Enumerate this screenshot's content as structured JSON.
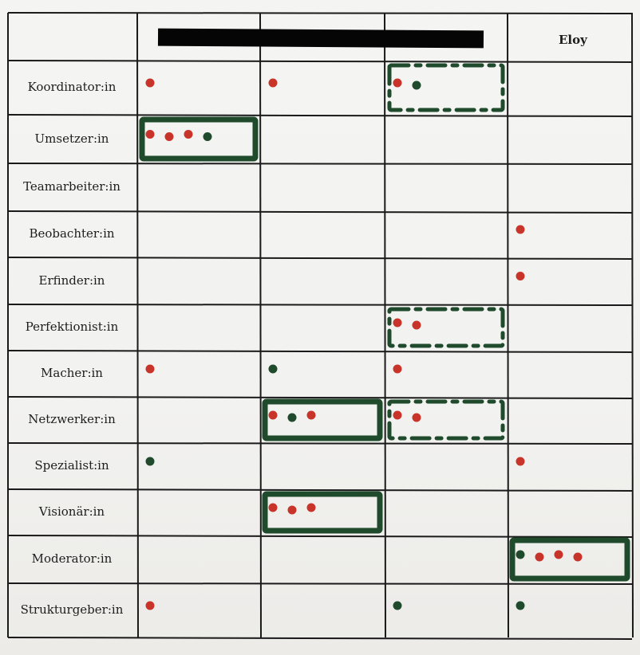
{
  "header": {
    "column_names": [
      "",
      "",
      "Eloy"
    ]
  },
  "rows": [
    {
      "label": "Koordinator:in"
    },
    {
      "label": "Umsetzer:in"
    },
    {
      "label": "Teamarbeiter:in"
    },
    {
      "label": "Beobachter:in"
    },
    {
      "label": "Erfinder:in"
    },
    {
      "label": "Perfektionist:in"
    },
    {
      "label": "Macher:in"
    },
    {
      "label": "Netzwerker:in"
    },
    {
      "label": "Spezialist:in"
    },
    {
      "label": "Visionär:in"
    },
    {
      "label": "Moderator:in"
    },
    {
      "label": "Strukturgeber:in"
    }
  ],
  "marks": {
    "colors": {
      "red": "#c8332a",
      "green": "#1f4a2c",
      "black": "#161616"
    },
    "dots": [
      {
        "row": 0,
        "col": 1,
        "color": "red"
      },
      {
        "row": 0,
        "col": 2,
        "color": "red"
      },
      {
        "row": 0,
        "col": 3,
        "color": "red"
      },
      {
        "row": 0,
        "col": 3,
        "color": "green"
      },
      {
        "row": 1,
        "col": 1,
        "color": "red"
      },
      {
        "row": 1,
        "col": 1,
        "color": "red"
      },
      {
        "row": 1,
        "col": 1,
        "color": "red"
      },
      {
        "row": 1,
        "col": 1,
        "color": "green"
      },
      {
        "row": 3,
        "col": 4,
        "color": "red"
      },
      {
        "row": 4,
        "col": 4,
        "color": "red"
      },
      {
        "row": 5,
        "col": 3,
        "color": "red"
      },
      {
        "row": 5,
        "col": 3,
        "color": "red"
      },
      {
        "row": 6,
        "col": 1,
        "color": "red"
      },
      {
        "row": 6,
        "col": 2,
        "color": "green"
      },
      {
        "row": 6,
        "col": 3,
        "color": "red"
      },
      {
        "row": 7,
        "col": 2,
        "color": "red"
      },
      {
        "row": 7,
        "col": 2,
        "color": "green"
      },
      {
        "row": 7,
        "col": 2,
        "color": "red"
      },
      {
        "row": 7,
        "col": 3,
        "color": "red"
      },
      {
        "row": 7,
        "col": 3,
        "color": "red"
      },
      {
        "row": 8,
        "col": 1,
        "color": "green"
      },
      {
        "row": 8,
        "col": 4,
        "color": "red"
      },
      {
        "row": 9,
        "col": 2,
        "color": "red"
      },
      {
        "row": 9,
        "col": 2,
        "color": "red"
      },
      {
        "row": 9,
        "col": 2,
        "color": "red"
      },
      {
        "row": 10,
        "col": 4,
        "color": "green"
      },
      {
        "row": 10,
        "col": 4,
        "color": "red"
      },
      {
        "row": 10,
        "col": 4,
        "color": "red"
      },
      {
        "row": 10,
        "col": 4,
        "color": "red"
      },
      {
        "row": 11,
        "col": 1,
        "color": "red"
      },
      {
        "row": 11,
        "col": 3,
        "color": "green"
      },
      {
        "row": 11,
        "col": 4,
        "color": "green"
      }
    ],
    "highlight_boxes": [
      {
        "row": 0,
        "col": 3,
        "style": "dashed"
      },
      {
        "row": 1,
        "col": 1,
        "style": "solid"
      },
      {
        "row": 5,
        "col": 3,
        "style": "dashed"
      },
      {
        "row": 7,
        "col": 2,
        "style": "solid"
      },
      {
        "row": 7,
        "col": 3,
        "style": "dashed"
      },
      {
        "row": 9,
        "col": 2,
        "style": "solid"
      },
      {
        "row": 10,
        "col": 4,
        "style": "solid"
      }
    ]
  }
}
